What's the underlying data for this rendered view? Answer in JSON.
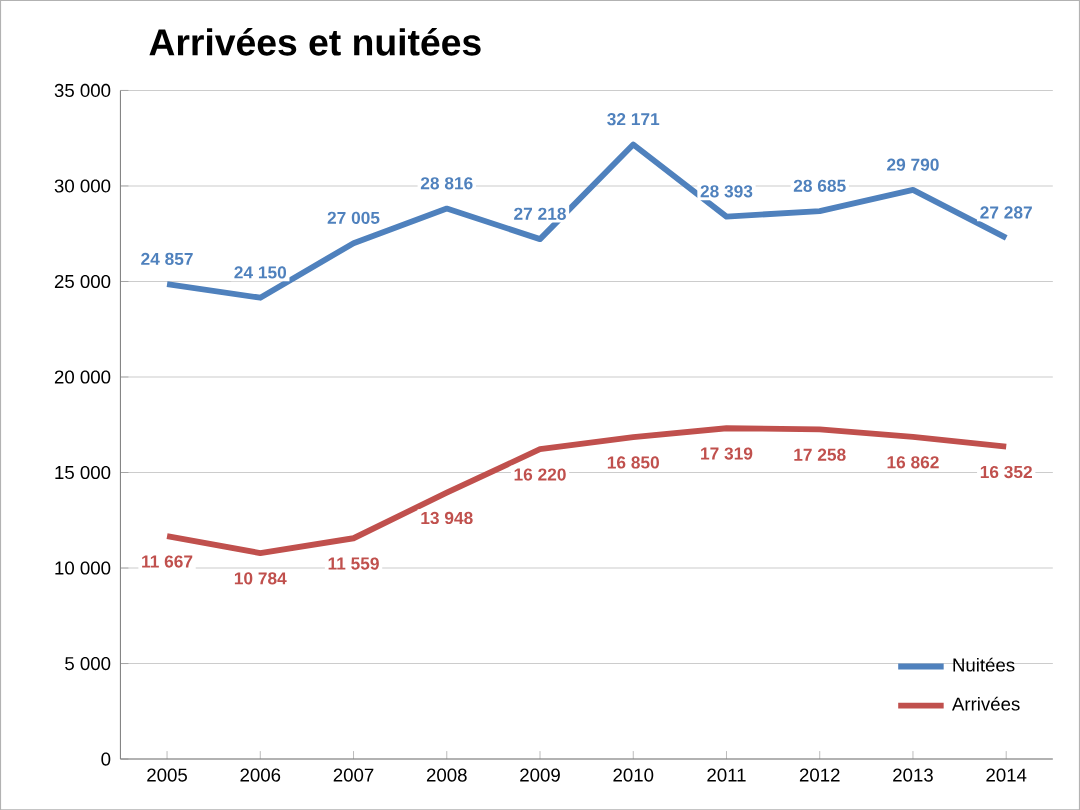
{
  "chart_data": {
    "type": "line",
    "title": "Arrivées et nuitées",
    "categories": [
      "2005",
      "2006",
      "2007",
      "2008",
      "2009",
      "2010",
      "2011",
      "2012",
      "2013",
      "2014"
    ],
    "series": [
      {
        "name": "Nuitées",
        "color": "#4f81bd",
        "values": [
          24857,
          24150,
          27005,
          28816,
          27218,
          32171,
          28393,
          28685,
          29790,
          27287
        ],
        "value_labels": [
          "24 857",
          "24 150",
          "27 005",
          "28 816",
          "27 218",
          "32 171",
          "28 393",
          "28 685",
          "29 790",
          "27 287"
        ]
      },
      {
        "name": "Arrivées",
        "color": "#c0504d",
        "values": [
          11667,
          10784,
          11559,
          13948,
          16220,
          16850,
          17319,
          17258,
          16862,
          16352
        ],
        "value_labels": [
          "11 667",
          "10 784",
          "11 559",
          "13 948",
          "16 220",
          "16 850",
          "17 319",
          "17 258",
          "16 862",
          "16 352"
        ]
      }
    ],
    "ylim": [
      0,
      35000
    ],
    "yticks": [
      0,
      {
        "value": 5000,
        "label": "5 000"
      },
      {
        "value": 10000,
        "label": "10 000"
      },
      {
        "value": 15000,
        "label": "15 000"
      },
      {
        "value": 20000,
        "label": "20 000"
      },
      {
        "value": 25000,
        "label": "25 000"
      },
      {
        "value": 30000,
        "label": "30 000"
      },
      {
        "value": 35000,
        "label": "35 000"
      }
    ],
    "grid": "y",
    "legend": "bottom right",
    "marker": "none",
    "line_style": "solid"
  }
}
